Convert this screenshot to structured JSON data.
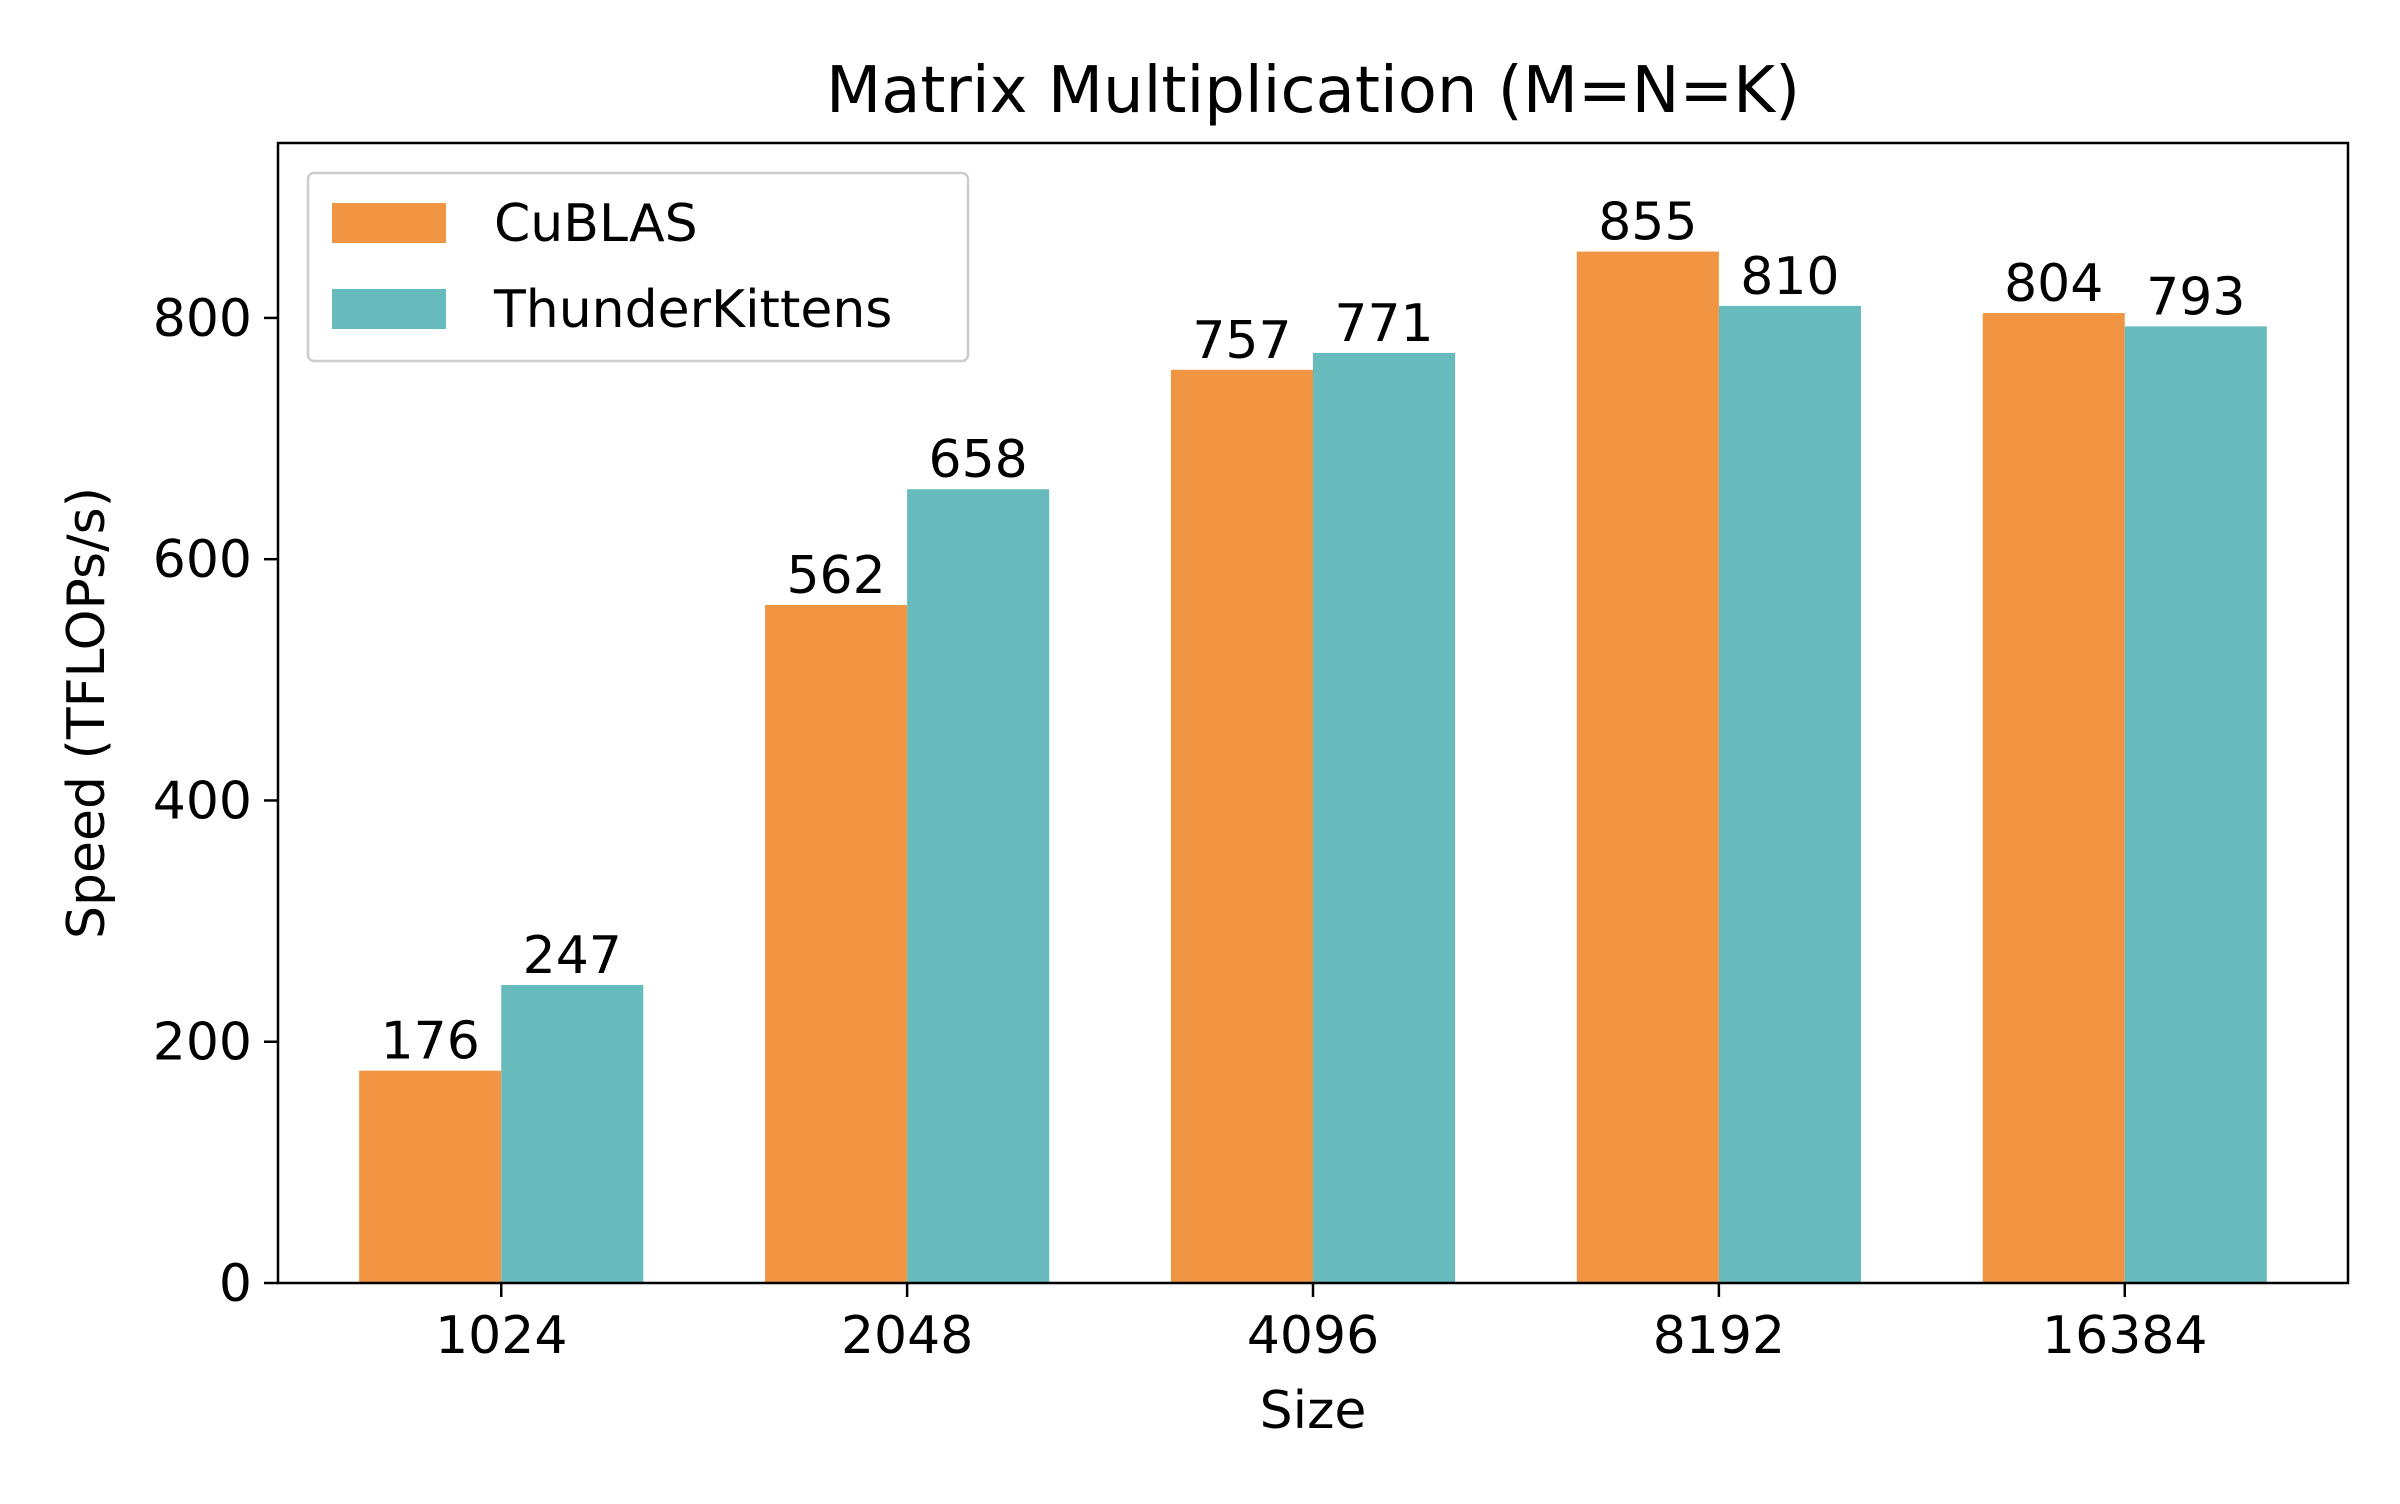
{
  "chart_data": {
    "type": "bar",
    "title": "Matrix Multiplication (M=N=K)",
    "xlabel": "Size",
    "ylabel": "Speed (TFLOPs/s)",
    "categories": [
      "1024",
      "2048",
      "4096",
      "8192",
      "16384"
    ],
    "series": [
      {
        "name": "CuBLAS",
        "color": "#F19542",
        "values": [
          176,
          562,
          757,
          855,
          804
        ]
      },
      {
        "name": "ThunderKittens",
        "color": "#68BBBC",
        "values": [
          247,
          658,
          771,
          810,
          793
        ]
      }
    ],
    "ylim": [
      0,
      945
    ],
    "yticks": [
      0,
      200,
      400,
      600,
      800
    ],
    "grid": false,
    "legend_position": "top-left",
    "data_labels": true
  }
}
